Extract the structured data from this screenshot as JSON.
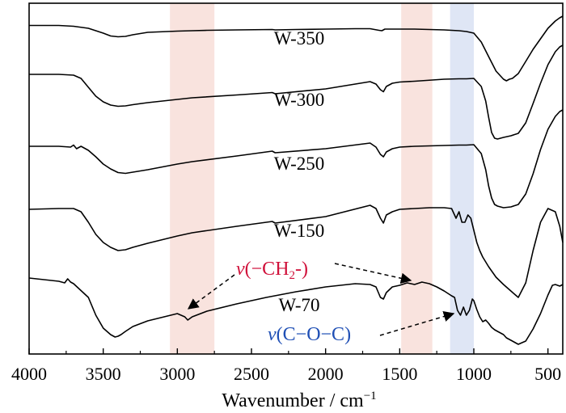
{
  "chart_data": {
    "type": "line",
    "title": "",
    "xlabel": "Wavenumber / cm",
    "xlabel_superscript": "−1",
    "ylabel": "",
    "xlim": [
      4000,
      400
    ],
    "x_reversed": true,
    "y_ticks_shown": false,
    "x_ticks": [
      4000,
      3500,
      3000,
      2500,
      2000,
      1500,
      1000,
      500
    ],
    "x_tick_labels": [
      "4000",
      "3500",
      "3000",
      "2500",
      "2000",
      "1500",
      "1000",
      "500"
    ],
    "grid": false,
    "legend": "none (curves labeled inline)",
    "highlight_bands": [
      {
        "range": [
          3050,
          2750
        ],
        "color": "#f9e3de"
      },
      {
        "range": [
          1490,
          1280
        ],
        "color": "#f9e3de"
      },
      {
        "range": [
          1160,
          1000
        ],
        "color": "#dfe6f5"
      }
    ],
    "series": [
      {
        "name": "W-350",
        "x": [
          4000,
          3800,
          3700,
          3600,
          3500,
          3450,
          3400,
          3350,
          3300,
          3200,
          3000,
          2900,
          2800,
          2600,
          2360,
          2340,
          2200,
          2000,
          1800,
          1700,
          1640,
          1620,
          1600,
          1400,
          1200,
          1100,
          1050,
          1000,
          950,
          900,
          850,
          800,
          780,
          760,
          740,
          700,
          650,
          600,
          550,
          500,
          450,
          420,
          400
        ],
        "y": [
          31.5,
          31.5,
          32.5,
          35,
          41,
          44.5,
          45.5,
          45,
          43,
          40,
          38.5,
          38,
          37.5,
          37,
          36.5,
          37,
          36.5,
          36,
          35.5,
          35.5,
          37.5,
          38,
          36,
          36,
          37,
          38,
          39,
          41,
          52,
          70,
          88,
          98,
          100,
          98,
          97,
          91,
          76,
          61,
          48,
          35,
          26,
          22,
          20
        ]
      },
      {
        "name": "W-300",
        "x": [
          4000,
          3800,
          3700,
          3650,
          3600,
          3550,
          3500,
          3450,
          3400,
          3350,
          3300,
          3200,
          3000,
          2900,
          2600,
          2360,
          2340,
          2000,
          1700,
          1660,
          1630,
          1610,
          1590,
          1550,
          1500,
          1400,
          1200,
          1100,
          1050,
          1000,
          950,
          920,
          900,
          880,
          860,
          840,
          820,
          800,
          750,
          700,
          650,
          600,
          550,
          500,
          450,
          420,
          400
        ],
        "y": [
          92,
          92,
          93,
          97,
          108,
          119,
          126,
          130,
          131.5,
          131,
          129.5,
          127,
          123,
          121,
          117.5,
          114.5,
          116,
          110,
          101,
          104,
          111,
          113.5,
          107,
          103,
          101.5,
          100.5,
          98,
          97.5,
          97.5,
          97,
          107,
          125,
          145,
          164,
          171,
          172,
          171,
          170,
          168,
          165,
          152,
          128,
          103,
          80,
          64,
          58,
          56
        ]
      },
      {
        "name": "W-250",
        "x": [
          4000,
          3800,
          3720,
          3700,
          3680,
          3650,
          3600,
          3550,
          3500,
          3450,
          3400,
          3350,
          3300,
          3200,
          3000,
          2900,
          2600,
          2360,
          2340,
          2000,
          1700,
          1660,
          1630,
          1610,
          1590,
          1550,
          1500,
          1400,
          1200,
          1100,
          1050,
          1000,
          950,
          920,
          900,
          880,
          860,
          840,
          820,
          800,
          750,
          700,
          650,
          600,
          550,
          500,
          450,
          420,
          400
        ],
        "y": [
          181,
          181,
          182,
          179.5,
          184,
          181,
          186,
          194,
          203,
          209,
          213.5,
          214.5,
          213,
          210,
          203,
          200,
          193,
          187,
          189,
          184,
          177,
          182,
          191,
          194,
          188,
          184,
          182,
          181,
          180,
          179.5,
          179.5,
          179,
          190,
          210,
          230,
          245,
          253,
          255,
          256,
          257,
          256,
          253,
          240,
          215,
          185,
          160,
          144,
          138,
          136
        ]
      },
      {
        "name": "W-150",
        "x": [
          4000,
          3800,
          3700,
          3650,
          3600,
          3550,
          3500,
          3450,
          3400,
          3350,
          3300,
          3200,
          3000,
          2900,
          2600,
          2360,
          2340,
          2000,
          1700,
          1660,
          1630,
          1610,
          1590,
          1550,
          1500,
          1400,
          1300,
          1200,
          1150,
          1120,
          1100,
          1080,
          1060,
          1040,
          1020,
          1000,
          980,
          960,
          940,
          900,
          850,
          800,
          750,
          700,
          650,
          600,
          550,
          500,
          450,
          420,
          400
        ],
        "y": [
          259,
          258,
          258,
          262,
          275,
          290,
          300,
          306,
          310,
          309,
          306,
          301,
          292,
          288,
          280,
          274,
          276,
          268,
          254,
          258,
          270,
          276,
          266,
          262,
          259,
          258,
          257,
          257,
          258,
          270,
          262,
          275,
          275,
          266,
          270,
          285,
          300,
          310,
          318,
          330,
          343,
          352,
          360,
          368,
          350,
          310,
          275,
          258,
          262,
          280,
          300
        ]
      },
      {
        "name": "W-70",
        "x": [
          4000,
          3800,
          3760,
          3740,
          3720,
          3700,
          3600,
          3550,
          3500,
          3450,
          3420,
          3400,
          3380,
          3350,
          3300,
          3200,
          3000,
          2950,
          2930,
          2900,
          2800,
          2600,
          2400,
          2200,
          2000,
          1800,
          1700,
          1660,
          1630,
          1610,
          1590,
          1550,
          1500,
          1450,
          1400,
          1350,
          1300,
          1250,
          1200,
          1150,
          1130,
          1110,
          1090,
          1070,
          1050,
          1030,
          1010,
          1000,
          980,
          960,
          940,
          920,
          900,
          880,
          860,
          840,
          820,
          800,
          780,
          760,
          740,
          720,
          700,
          650,
          600,
          550,
          500,
          470,
          450,
          420,
          400
        ],
        "y": [
          344,
          348,
          350,
          345,
          349,
          351,
          368,
          390,
          406,
          414,
          417,
          416,
          414,
          410,
          404,
          397,
          388,
          392,
          396,
          392,
          385,
          376,
          368,
          361,
          355,
          351,
          352,
          355,
          368,
          370,
          362,
          355,
          353,
          350,
          352,
          349,
          351,
          355,
          360,
          366,
          368,
          384,
          390,
          380,
          390,
          384,
          370,
          372,
          383,
          392,
          398,
          396,
          400,
          405,
          408,
          410,
          412,
          414,
          418,
          420,
          422,
          424,
          426,
          422,
          407,
          388,
          365,
          353,
          352,
          354,
          352
        ]
      }
    ]
  },
  "annotations": {
    "ch2_v": "v",
    "ch2_rest": "(−CH",
    "ch2_sub": "2",
    "ch2_end": "-)",
    "coc_v": "v",
    "coc_rest": "(C−O−C)"
  }
}
